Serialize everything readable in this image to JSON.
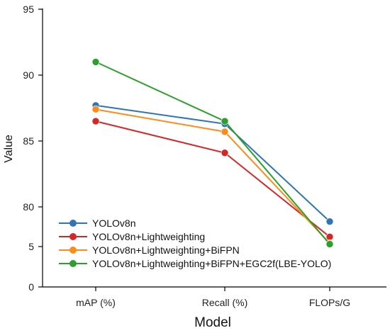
{
  "chart_data": {
    "type": "line",
    "title": "",
    "xlabel": "Model",
    "ylabel": "Value",
    "categories": [
      "mAP (%)",
      "Recall (%)",
      "FLOPs/G"
    ],
    "y_tick_labels": [
      "0",
      "5",
      "80",
      "85",
      "90",
      "95"
    ],
    "y_broken_axis": true,
    "grid": false,
    "legend_position": "bottom-left",
    "series": [
      {
        "name": "YOLOv8n",
        "color": "#2e75b6",
        "values": [
          87.7,
          86.3,
          8.1
        ]
      },
      {
        "name": "YOLOv8n+Lightweighting",
        "color": "#d62728",
        "values": [
          86.5,
          84.1,
          6.2
        ]
      },
      {
        "name": "YOLOv8n+Lightweighting+BiFPN",
        "color": "#ff8c1a",
        "values": [
          87.4,
          85.7,
          5.4
        ]
      },
      {
        "name": "YOLOv8n+Lightweighting+BiFPN+EGC2f(LBE-YOLO)",
        "color": "#2ca02c",
        "values": [
          91.0,
          86.5,
          5.3
        ]
      }
    ]
  }
}
